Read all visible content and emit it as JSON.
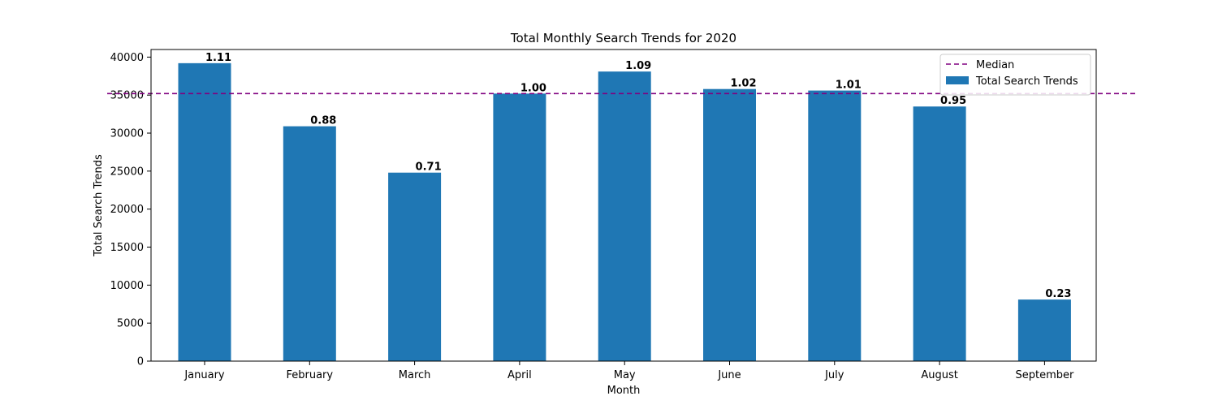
{
  "chart_data": {
    "type": "bar",
    "title": "Total Monthly Search Trends for 2020",
    "xlabel": "Month",
    "ylabel": "Total Search Trends",
    "categories": [
      "January",
      "February",
      "March",
      "April",
      "May",
      "June",
      "July",
      "August",
      "September"
    ],
    "series": [
      {
        "name": "Total Search Trends",
        "values": [
          39200,
          30900,
          24800,
          35200,
          38100,
          35800,
          35600,
          33500,
          8100
        ],
        "data_labels": [
          "1.11",
          "0.88",
          "0.71",
          "1.00",
          "1.09",
          "1.02",
          "1.01",
          "0.95",
          "0.23"
        ],
        "color": "#1f77b4"
      }
    ],
    "reference_line": {
      "name": "Median",
      "value": 35200,
      "color": "#800080",
      "style": "dashed"
    },
    "ylim": [
      0,
      41000
    ],
    "yticks": [
      0,
      5000,
      10000,
      15000,
      20000,
      25000,
      30000,
      35000,
      40000
    ],
    "grid": false,
    "legend_position": "top-right"
  }
}
